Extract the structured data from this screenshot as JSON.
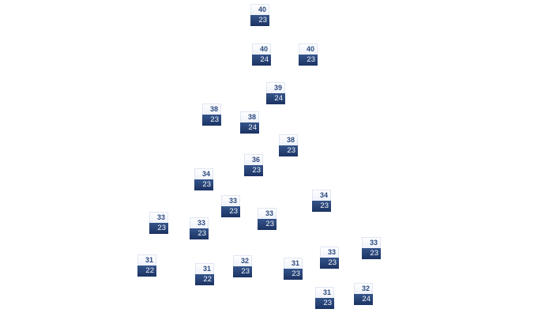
{
  "colors": {
    "high_bg": "#ffffff",
    "high_text": "#2c4a80",
    "low_bg": "#1c3363",
    "low_text": "#f2f5fb"
  },
  "markers": [
    {
      "high": "40",
      "low": "23"
    },
    {
      "high": "40",
      "low": "24"
    },
    {
      "high": "40",
      "low": "23"
    },
    {
      "high": "39",
      "low": "24"
    },
    {
      "high": "38",
      "low": "23"
    },
    {
      "high": "38",
      "low": "24"
    },
    {
      "high": "38",
      "low": "23"
    },
    {
      "high": "36",
      "low": "23"
    },
    {
      "high": "34",
      "low": "23"
    },
    {
      "high": "33",
      "low": "23"
    },
    {
      "high": "33",
      "low": "23"
    },
    {
      "high": "34",
      "low": "23"
    },
    {
      "high": "33",
      "low": "23"
    },
    {
      "high": "33",
      "low": "23"
    },
    {
      "high": "33",
      "low": "23"
    },
    {
      "high": "31",
      "low": "22"
    },
    {
      "high": "31",
      "low": "22"
    },
    {
      "high": "32",
      "low": "23"
    },
    {
      "high": "31",
      "low": "23"
    },
    {
      "high": "33",
      "low": "23"
    },
    {
      "high": "31",
      "low": "23"
    },
    {
      "high": "32",
      "low": "24"
    }
  ]
}
